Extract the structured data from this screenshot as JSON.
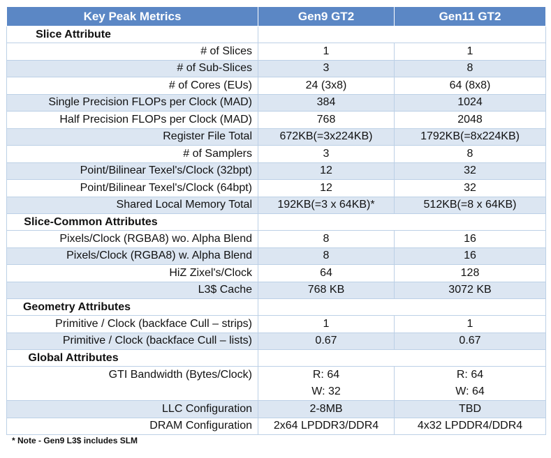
{
  "header": {
    "col1": "Key Peak Metrics",
    "col2": "Gen9 GT2",
    "col3": "Gen11 GT2"
  },
  "rows": [
    {
      "type": "section",
      "label": "Slice Attribute"
    },
    {
      "type": "data",
      "label": "# of Slices",
      "gen9": "1",
      "gen11": "1"
    },
    {
      "type": "data",
      "label": "# of Sub-Slices",
      "gen9": "3",
      "gen11": "8"
    },
    {
      "type": "data",
      "label": "# of Cores (EUs)",
      "gen9": "24 (3x8)",
      "gen11": "64 (8x8)"
    },
    {
      "type": "data",
      "label": "Single Precision FLOPs per Clock (MAD)",
      "gen9": "384",
      "gen11": "1024"
    },
    {
      "type": "data",
      "label": "Half Precision FLOPs per Clock (MAD)",
      "gen9": "768",
      "gen11": "2048"
    },
    {
      "type": "data",
      "label": "Register File Total",
      "gen9": "672KB(=3x224KB)",
      "gen11": "1792KB(=8x224KB)"
    },
    {
      "type": "data",
      "label": "# of Samplers",
      "gen9": "3",
      "gen11": "8"
    },
    {
      "type": "data",
      "label": "Point/Bilinear Texel's/Clock (32bpt)",
      "gen9": "12",
      "gen11": "32"
    },
    {
      "type": "data",
      "label": "Point/Bilinear Texel's/Clock (64bpt)",
      "gen9": "12",
      "gen11": "32"
    },
    {
      "type": "data",
      "label": "Shared Local Memory Total",
      "gen9": "192KB(=3 x 64KB)*",
      "gen11": "512KB(=8 x 64KB)"
    },
    {
      "type": "section",
      "label": "Slice-Common Attributes"
    },
    {
      "type": "data",
      "label": "Pixels/Clock (RGBA8) wo. Alpha Blend",
      "gen9": "8",
      "gen11": "16"
    },
    {
      "type": "data",
      "label": "Pixels/Clock (RGBA8) w. Alpha Blend",
      "gen9": "8",
      "gen11": "16"
    },
    {
      "type": "data",
      "label": "HiZ Zixel's/Clock",
      "gen9": "64",
      "gen11": "128"
    },
    {
      "type": "data",
      "label": "L3$ Cache",
      "gen9": "768 KB",
      "gen11": "3072 KB"
    },
    {
      "type": "section",
      "label": "Geometry Attributes"
    },
    {
      "type": "data",
      "label": "Primitive / Clock (backface Cull – strips)",
      "gen9": "1",
      "gen11": "1"
    },
    {
      "type": "data",
      "label": "Primitive / Clock (backface Cull – lists)",
      "gen9": "0.67",
      "gen11": "0.67"
    },
    {
      "type": "section",
      "label": "Global Attributes"
    },
    {
      "type": "multi",
      "label": "GTI Bandwidth (Bytes/Clock)",
      "gen9": [
        "R: 64",
        "W: 32"
      ],
      "gen11": [
        "R: 64",
        "W: 64"
      ]
    },
    {
      "type": "data",
      "label": "LLC Configuration",
      "gen9": "2-8MB",
      "gen11": "TBD"
    },
    {
      "type": "data",
      "label": "DRAM Configuration",
      "gen9": "2x64 LPDDR3/DDR4",
      "gen11": "4x32 LPDDR4/DDR4"
    }
  ],
  "note": "* Note - Gen9 L3$ includes SLM",
  "colors": {
    "header_bg": "#5b87c5",
    "alt_row_bg": "#dce6f2",
    "border": "#bcd0e6"
  }
}
